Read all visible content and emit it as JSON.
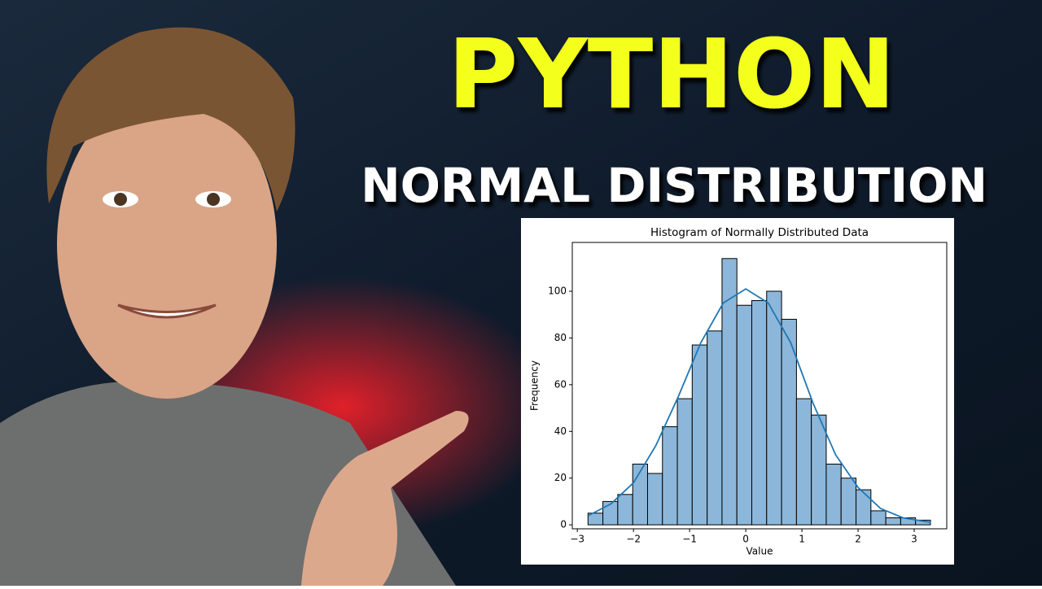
{
  "header": {
    "title": "PYTHON",
    "subtitle": "NORMAL DISTRIBUTION"
  },
  "chart_data": {
    "type": "histogram",
    "title": "Histogram of Normally Distributed Data",
    "x_label": "Value",
    "y_label": "Frequency",
    "color": "#8cb7da",
    "bins": [
      -2.81,
      -2.545,
      -2.28,
      -2.014,
      -1.749,
      -1.484,
      -1.219,
      -0.954,
      -0.688,
      -0.423,
      -0.158,
      0.107,
      0.372,
      0.638,
      0.903,
      1.168,
      1.433,
      1.698,
      1.964,
      2.229,
      2.494,
      2.759,
      3.024,
      3.29
    ],
    "values": [
      5,
      10,
      13,
      26,
      22,
      42,
      54,
      77,
      83,
      114,
      94,
      96,
      100,
      88,
      54,
      47,
      26,
      20,
      15,
      6,
      3,
      3,
      2
    ],
    "kde": {
      "color": "#1f77b4",
      "x": [
        -2.8,
        -2.4,
        -2,
        -1.6,
        -1.2,
        -0.8,
        -0.4,
        0,
        0.4,
        0.8,
        1.2,
        1.6,
        2,
        2.4,
        2.8,
        3.3
      ],
      "values": [
        4,
        9,
        18,
        34,
        55,
        78,
        95,
        101,
        95,
        78,
        52,
        30,
        16,
        7,
        3,
        1
      ]
    },
    "xlim": [
      -3.09,
      3.58
    ],
    "ylim": [
      -1.7,
      120.9
    ],
    "xticks": [
      {
        "value": -3,
        "label": "−3"
      },
      {
        "value": -2,
        "label": "−2"
      },
      {
        "value": -1,
        "label": "−1"
      },
      0,
      1,
      2,
      3
    ],
    "yticks": [
      0,
      20,
      40,
      60,
      80,
      100
    ]
  }
}
